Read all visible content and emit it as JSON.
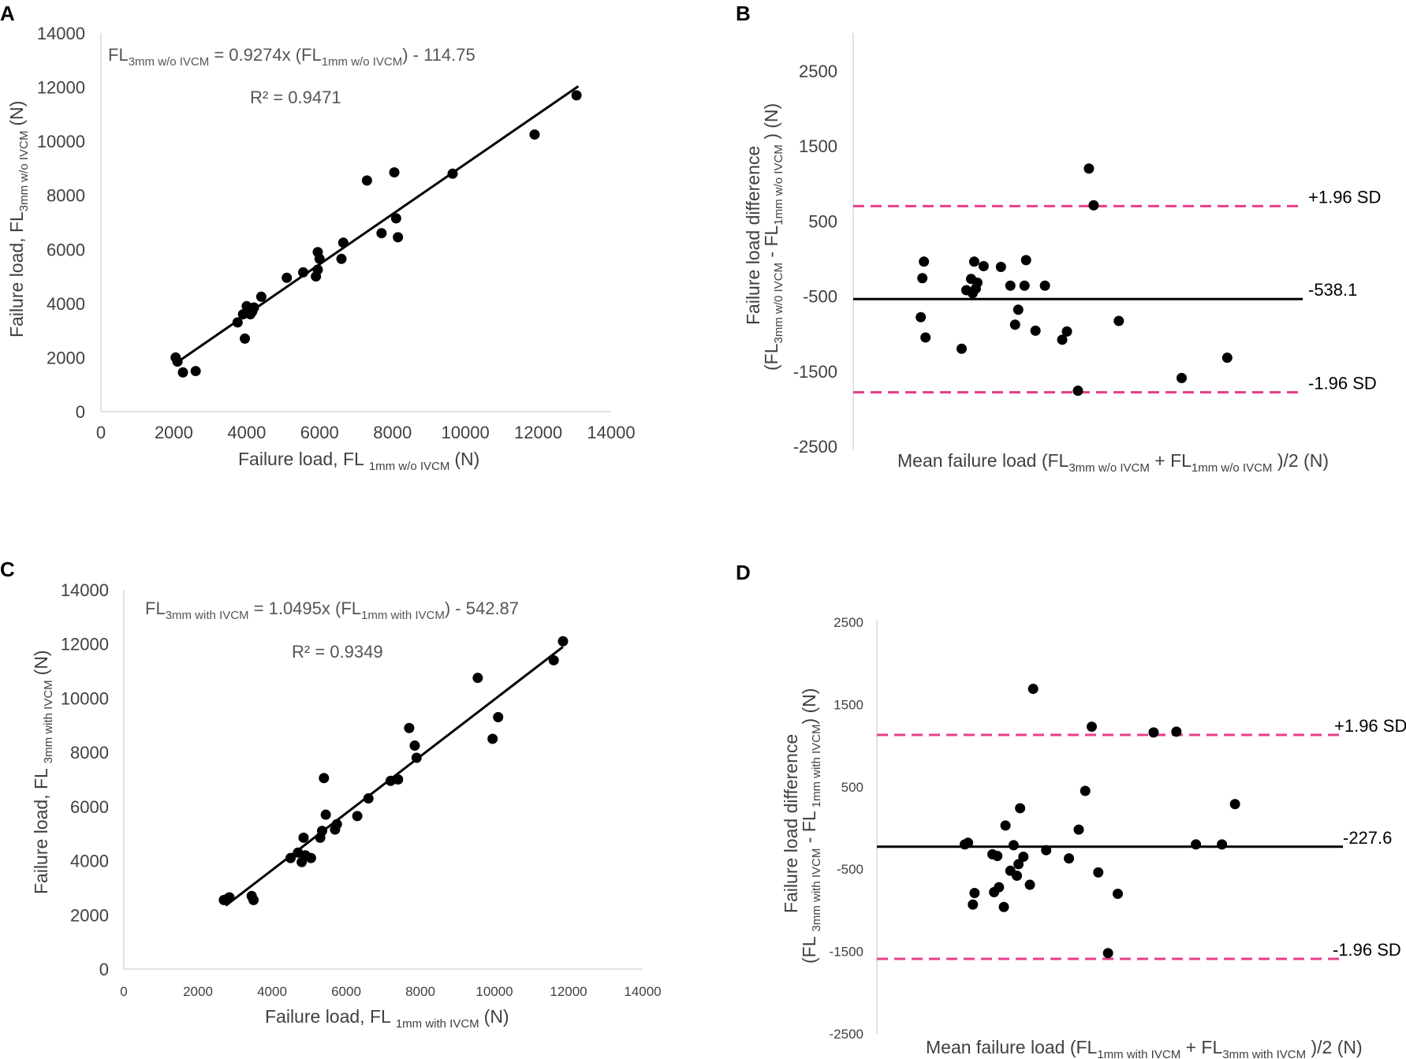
{
  "chart_data": [
    {
      "panel": "A",
      "type": "scatter",
      "title": "",
      "xlabel": {
        "main": "Failure load, FL",
        "sub": "1mm w/o IVCM",
        "unit": "(N)"
      },
      "ylabel": {
        "main": "Failure load, FL",
        "sub": "3mm w/o IVCM",
        "unit": "(N)"
      },
      "xlim": [
        0,
        14000
      ],
      "ylim": [
        0,
        14000
      ],
      "xticks": [
        0,
        2000,
        4000,
        6000,
        8000,
        10000,
        12000,
        14000
      ],
      "yticks": [
        0,
        2000,
        4000,
        6000,
        8000,
        10000,
        12000,
        14000
      ],
      "equation": {
        "a": "FL",
        "a_sub": "3mm w/o IVCM",
        "b": " = 0.9274x (FL",
        "b_sub": "1mm w/o  IVCM",
        "c": ") - 114.75"
      },
      "r2": "R² = 0.9471",
      "trendline": {
        "slope": 0.9274,
        "intercept": -114.75,
        "x_range": [
          2000,
          13100
        ]
      },
      "x": [
        2050,
        2100,
        2250,
        2600,
        3750,
        3900,
        3950,
        4000,
        4100,
        4150,
        4200,
        4400,
        5100,
        5550,
        5900,
        5950,
        5950,
        6000,
        6600,
        6650,
        7300,
        7700,
        8050,
        8100,
        8150,
        9650,
        11900,
        13050
      ],
      "y": [
        2000,
        1850,
        1450,
        1500,
        3300,
        3600,
        2700,
        3900,
        3600,
        3700,
        3850,
        4250,
        4950,
        5150,
        5000,
        5250,
        5900,
        5650,
        5650,
        6250,
        8550,
        6600,
        8850,
        7150,
        6450,
        8800,
        10250,
        11700
      ]
    },
    {
      "panel": "B",
      "type": "scatter",
      "title": "",
      "xlabel": {
        "a": "Mean failure load (FL",
        "a_sub": "3mm w/o IVCM",
        "b": " + FL",
        "b_sub": "1mm w/o IVCM",
        "c": " )/2 (N)"
      },
      "ylabel_line1": "Failure load difference",
      "ylabel_line2": {
        "a": "(FL",
        "a_sub": "3mm w/0 IVCM",
        "b": " - FL",
        "b_sub": "1mm w/o IVCM",
        "c": " ) (N)"
      },
      "xlim": [
        0,
        14000
      ],
      "ylim": [
        -2500,
        3000
      ],
      "yticks": [
        2500,
        1500,
        500,
        -500,
        -1500,
        -2500
      ],
      "mean_line": {
        "value": -538.1,
        "label": "-538.1"
      },
      "upper_loa": {
        "value": 700,
        "label": "+1.96 SD"
      },
      "lower_loa": {
        "value": -1780,
        "label": "-1.96 SD"
      },
      "x": [
        2150,
        2200,
        2250,
        2300,
        3450,
        3600,
        3750,
        3800,
        3850,
        3900,
        3950,
        4150,
        4700,
        5000,
        5150,
        5250,
        5450,
        5500,
        5800,
        6100,
        6650,
        6800,
        7150,
        7500,
        7650,
        8450,
        10450,
        11900
      ],
      "y": [
        -780,
        -260,
        -40,
        -1050,
        -1200,
        -420,
        -270,
        -460,
        -40,
        -400,
        -320,
        -100,
        -110,
        -360,
        -880,
        -680,
        -360,
        -20,
        -960,
        -360,
        -1080,
        -970,
        -1760,
        1200,
        710,
        -830,
        -1590,
        -1320
      ]
    },
    {
      "panel": "C",
      "type": "scatter",
      "title": "",
      "xlabel": {
        "main": "Failure load, FL",
        "sub": "1mm with IVCM",
        "unit": "(N)"
      },
      "ylabel": {
        "main": "Failure load, FL",
        "sub": "3mm with IVCM",
        "unit": "(N)"
      },
      "xlim": [
        0,
        14000
      ],
      "ylim": [
        0,
        14000
      ],
      "xticks": [
        0,
        2000,
        4000,
        6000,
        8000,
        10000,
        12000,
        14000
      ],
      "yticks": [
        0,
        2000,
        4000,
        6000,
        8000,
        10000,
        12000,
        14000
      ],
      "equation": {
        "a": "FL",
        "a_sub": "3mm with IVCM",
        "b": "  = 1.0495x (FL",
        "b_sub": "1mm with  IVCM",
        "c": ") - 542.87"
      },
      "r2": "R² = 0.9349",
      "trendline": {
        "slope": 1.0495,
        "intercept": -542.87,
        "x_range": [
          2750,
          11850
        ]
      },
      "x": [
        2700,
        2800,
        2850,
        3450,
        3500,
        4500,
        4700,
        4800,
        4850,
        4900,
        5050,
        5300,
        5350,
        5400,
        5450,
        5700,
        5750,
        6300,
        6600,
        7200,
        7400,
        7700,
        7850,
        7900,
        9550,
        9950,
        10100,
        11600,
        11850
      ],
      "y": [
        2550,
        2600,
        2650,
        2700,
        2550,
        4100,
        4300,
        3950,
        4850,
        4200,
        4100,
        4850,
        5100,
        7050,
        5700,
        5150,
        5350,
        5650,
        6300,
        6950,
        7000,
        8900,
        8250,
        7800,
        10750,
        8500,
        9300,
        11400,
        12100
      ]
    },
    {
      "panel": "D",
      "type": "scatter",
      "title": "",
      "xlabel": {
        "a": "Mean failure load (FL",
        "a_sub": "1mm with IVCM",
        "b": " + FL",
        "b_sub": "3mm with IVCM",
        "c": " )/2 (N)"
      },
      "ylabel_line1": "Failure load difference",
      "ylabel_line2": {
        "a": "(FL",
        "a_sub": "3mm with IVCM",
        "b": " - FL",
        "b_sub": "1mm with IVCM",
        "c": ") (N)"
      },
      "xlim": [
        0,
        14000
      ],
      "ylim": [
        -2500,
        2500
      ],
      "yticks": [
        2500,
        1500,
        500,
        -500,
        -1500,
        -2500
      ],
      "mean_line": {
        "value": -227.6,
        "label": "-227.6"
      },
      "upper_loa": {
        "value": 1130,
        "label": "+1.96 SD"
      },
      "lower_loa": {
        "value": -1590,
        "label": "-1.96 SD"
      },
      "x": [
        2700,
        2800,
        2950,
        3000,
        3550,
        3600,
        3700,
        3750,
        3900,
        3950,
        4100,
        4200,
        4300,
        4350,
        4400,
        4500,
        4700,
        4800,
        5200,
        5900,
        6200,
        6400,
        6600,
        6800,
        7100,
        7400,
        8500,
        9200,
        9800,
        10600,
        11000
      ],
      "y": [
        -200,
        -180,
        -930,
        -790,
        -320,
        -780,
        -340,
        -720,
        -960,
        30,
        -520,
        -210,
        -580,
        -440,
        240,
        -350,
        -690,
        1690,
        -270,
        -370,
        -20,
        450,
        1230,
        -540,
        -1520,
        -800,
        1160,
        1170,
        -200,
        -200,
        290
      ]
    }
  ],
  "panels": [
    {
      "letter": "A"
    },
    {
      "letter": "B"
    },
    {
      "letter": "C"
    },
    {
      "letter": "D"
    }
  ],
  "colors": {
    "points": "#000000",
    "trendline": "#000000",
    "mean_line": "#000000",
    "loa_line": "#e83e8c",
    "axis": "#d9d9d9",
    "text": "#404040"
  }
}
